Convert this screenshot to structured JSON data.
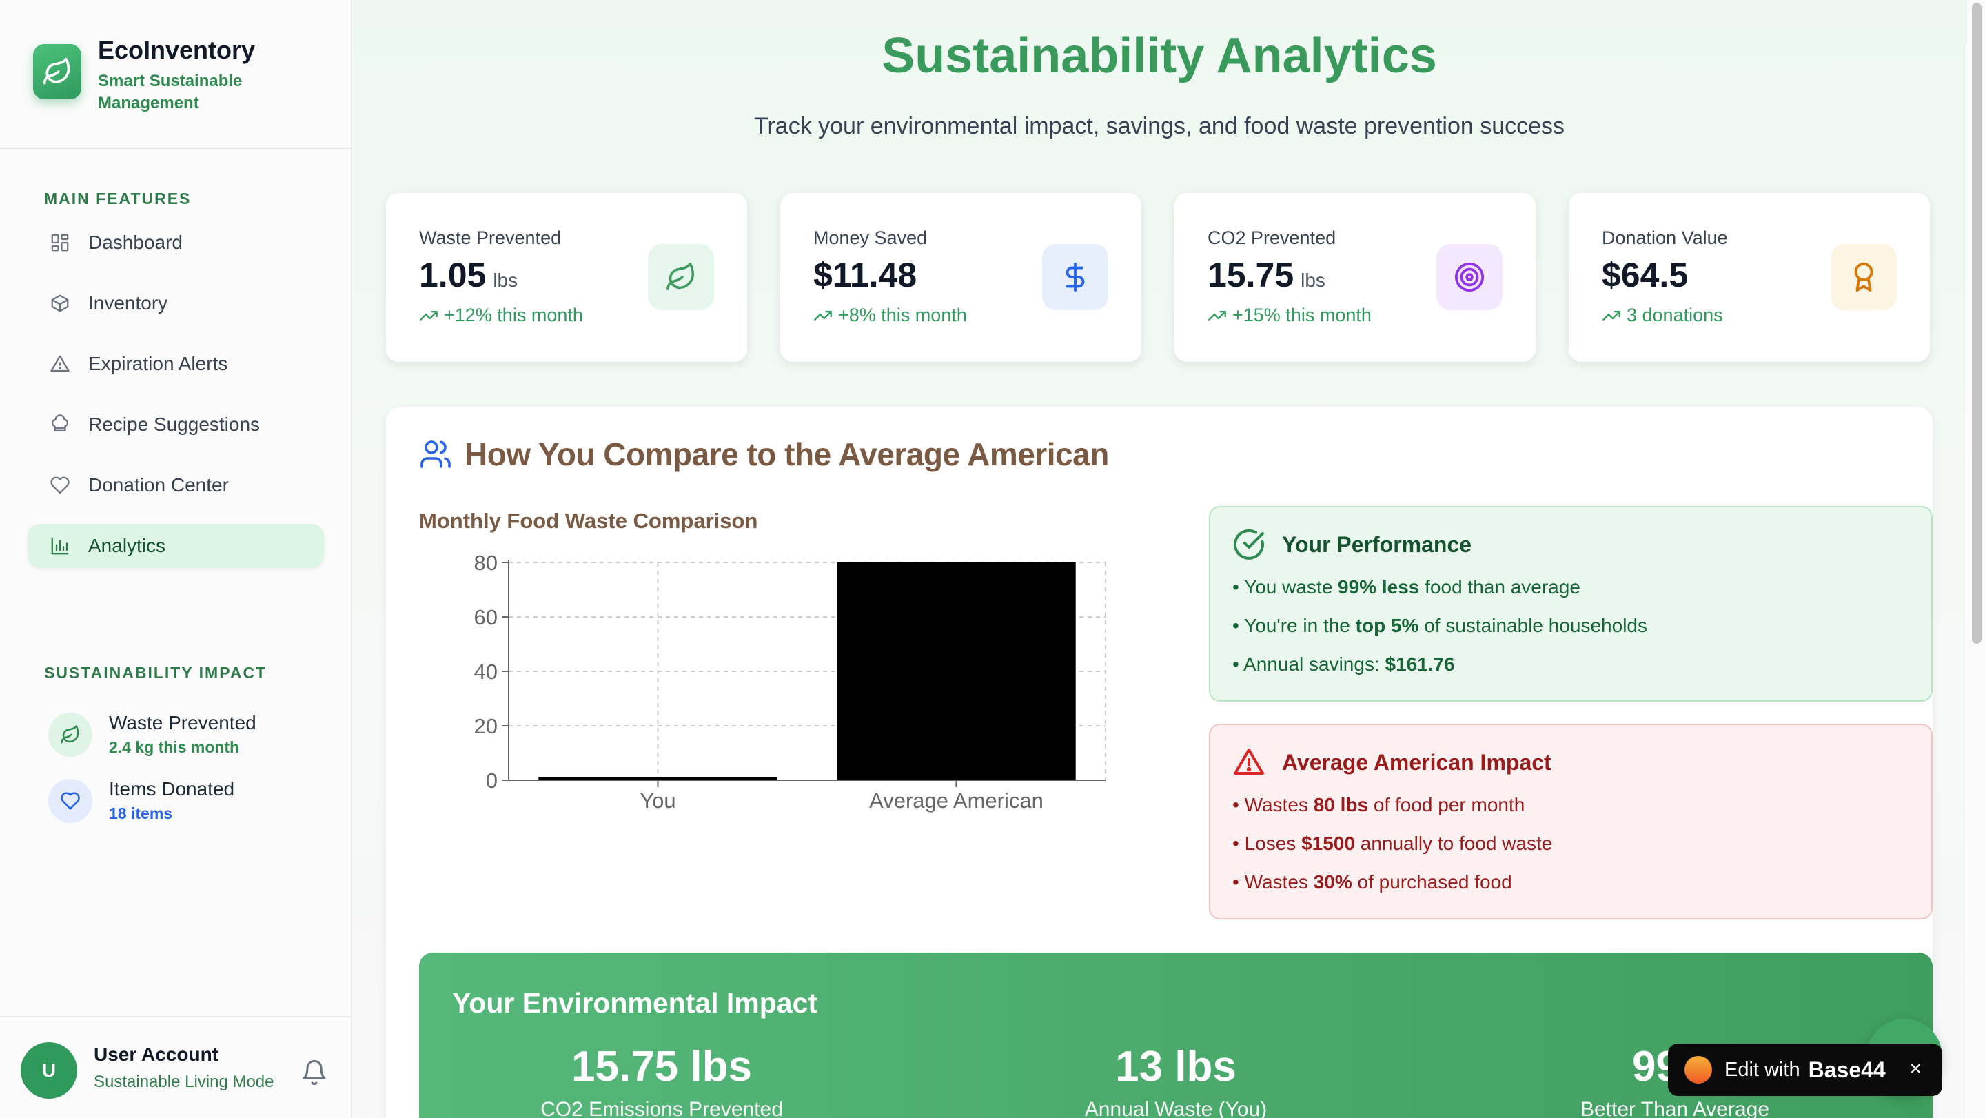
{
  "brand": {
    "name": "EcoInventory",
    "subtitle": "Smart Sustainable Management"
  },
  "sidebar": {
    "main_section": "MAIN FEATURES",
    "items": [
      {
        "label": "Dashboard",
        "icon": "grid-icon"
      },
      {
        "label": "Inventory",
        "icon": "box-icon"
      },
      {
        "label": "Expiration Alerts",
        "icon": "warning-icon"
      },
      {
        "label": "Recipe Suggestions",
        "icon": "chef-hat-icon"
      },
      {
        "label": "Donation Center",
        "icon": "heart-icon"
      },
      {
        "label": "Analytics",
        "icon": "bar-chart-icon",
        "active": true
      }
    ],
    "impact_section": "SUSTAINABILITY IMPACT",
    "impact": [
      {
        "title": "Waste Prevented",
        "sub": "2.4 kg this month",
        "icon": "leaf-icon",
        "color": "#2f8a4f"
      },
      {
        "title": "Items Donated",
        "sub": "18 items",
        "icon": "heart-icon",
        "color": "#2563eb"
      }
    ]
  },
  "user": {
    "initial": "U",
    "name": "User Account",
    "mode": "Sustainable Living Mode"
  },
  "page": {
    "title": "Sustainability Analytics",
    "subtitle": "Track your environmental impact, savings, and food waste prevention success"
  },
  "stats": [
    {
      "label": "Waste Prevented",
      "value": "1.05",
      "unit": "lbs",
      "trend": "+12% this month",
      "icon": "leaf-icon",
      "icon_color": "#3a9a5c",
      "icon_bg": "#e7f6ec"
    },
    {
      "label": "Money Saved",
      "value": "$11.48",
      "unit": "",
      "trend": "+8% this month",
      "icon": "dollar-icon",
      "icon_color": "#2563eb",
      "icon_bg": "#e7eefc"
    },
    {
      "label": "CO2 Prevented",
      "value": "15.75",
      "unit": "lbs",
      "trend": "+15% this month",
      "icon": "target-icon",
      "icon_color": "#9333ea",
      "icon_bg": "#f3e8fd"
    },
    {
      "label": "Donation Value",
      "value": "$64.5",
      "unit": "",
      "trend": "3 donations",
      "icon": "award-icon",
      "icon_color": "#d97706",
      "icon_bg": "#fdf5e4"
    }
  ],
  "compare": {
    "title": "How You Compare to the Average American",
    "chart_title": "Monthly Food Waste Comparison"
  },
  "chart_data": {
    "type": "bar",
    "categories": [
      "You",
      "Average American"
    ],
    "values": [
      1.05,
      80
    ],
    "ylim": [
      0,
      80
    ],
    "yticks": [
      "0",
      "20",
      "40",
      "60",
      "80"
    ],
    "grid": true,
    "bar_color": "#000000"
  },
  "performance": {
    "title": "Your Performance",
    "lines": [
      {
        "pre": "You waste ",
        "bold": "99% less",
        "post": " food than average"
      },
      {
        "pre": "You're in the ",
        "bold": "top 5%",
        "post": " of sustainable households"
      },
      {
        "pre": "Annual savings: ",
        "bold": "$161.76",
        "post": ""
      }
    ]
  },
  "average": {
    "title": "Average American Impact",
    "lines": [
      {
        "pre": "Wastes ",
        "bold": "80 lbs",
        "post": " of food per month"
      },
      {
        "pre": "Loses ",
        "bold": "$1500",
        "post": " annually to food waste"
      },
      {
        "pre": "Wastes ",
        "bold": "30%",
        "post": " of purchased food"
      }
    ]
  },
  "environment": {
    "title": "Your Environmental Impact",
    "stats": [
      {
        "value": "15.75 lbs",
        "label": "CO2 Emissions Prevented"
      },
      {
        "value": "13 lbs",
        "label": "Annual Waste (You)"
      },
      {
        "value": "99%",
        "label": "Better Than Average"
      }
    ]
  },
  "badge": {
    "edit": "Edit with",
    "brand": "Base44",
    "close": "×"
  },
  "bullet": "•"
}
